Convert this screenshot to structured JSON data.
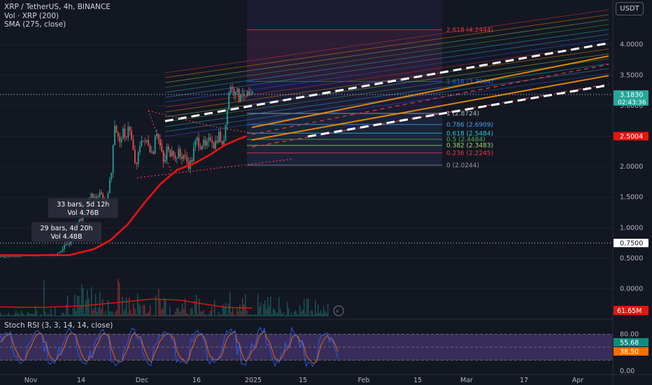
{
  "legend": {
    "symbol_line": "XRP / TetherUS, 4h, BINANCE",
    "vol_line": "Vol · XRP (200)",
    "sma_line": "SMA (275, close)"
  },
  "currency_button": "USDT",
  "stoch_label": "Stoch RSI (3, 3, 14, 14, close)",
  "colors": {
    "background": "#131722",
    "candle_up": "#26a69a",
    "candle_down": "#ef5350",
    "sma": "#e8140f",
    "fib_box": "#7c4dff",
    "stoch_band": "#7e57c2",
    "stoch_k": "#2962ff",
    "stoch_d": "#ff6d00"
  },
  "chart_data": {
    "type": "candlestick",
    "title": "",
    "y_axis": {
      "ticks": [
        "4.0000",
        "3.5000",
        "3.0000",
        "2.5000",
        "2.0000",
        "1.5000",
        "1.0000",
        "0.5000",
        "0.0000"
      ],
      "range": [
        -0.25,
        4.6
      ]
    },
    "x_axis": {
      "ticks": [
        "Nov",
        "14",
        "Dec",
        "16",
        "2025",
        "15",
        "Feb",
        "15",
        "Mar",
        "17",
        "Apr"
      ]
    },
    "price_path": [
      {
        "d": 0,
        "v": 0.52
      },
      {
        "d": 20,
        "v": 0.56
      },
      {
        "d": 25,
        "v": 0.75
      },
      {
        "d": 27,
        "v": 1.05
      },
      {
        "d": 29,
        "v": 1.15
      },
      {
        "d": 31,
        "v": 1.25
      },
      {
        "d": 32,
        "v": 1.45
      },
      {
        "d": 33,
        "v": 1.55
      },
      {
        "d": 34,
        "v": 1.48
      },
      {
        "d": 36,
        "v": 1.55
      },
      {
        "d": 38,
        "v": 1.42
      },
      {
        "d": 40,
        "v": 1.9
      },
      {
        "d": 41,
        "v": 2.75
      },
      {
        "d": 42,
        "v": 2.55
      },
      {
        "d": 43,
        "v": 2.35
      },
      {
        "d": 44,
        "v": 2.6
      },
      {
        "d": 45,
        "v": 2.4
      },
      {
        "d": 46,
        "v": 2.7
      },
      {
        "d": 47,
        "v": 2.5
      },
      {
        "d": 48,
        "v": 2.2
      },
      {
        "d": 49,
        "v": 1.95
      },
      {
        "d": 50,
        "v": 2.3
      },
      {
        "d": 51,
        "v": 2.5
      },
      {
        "d": 52,
        "v": 2.35
      },
      {
        "d": 53,
        "v": 2.45
      },
      {
        "d": 54,
        "v": 2.3
      },
      {
        "d": 55,
        "v": 2.2
      },
      {
        "d": 56,
        "v": 2.65
      },
      {
        "d": 57,
        "v": 2.45
      },
      {
        "d": 58,
        "v": 2.25
      },
      {
        "d": 59,
        "v": 2.0
      },
      {
        "d": 60,
        "v": 2.3
      },
      {
        "d": 61,
        "v": 2.2
      },
      {
        "d": 62,
        "v": 2.35
      },
      {
        "d": 63,
        "v": 2.1
      },
      {
        "d": 64,
        "v": 2.25
      },
      {
        "d": 65,
        "v": 2.15
      },
      {
        "d": 66,
        "v": 2.2
      },
      {
        "d": 67,
        "v": 2.1
      },
      {
        "d": 68,
        "v": 2.03
      },
      {
        "d": 69,
        "v": 2.1
      },
      {
        "d": 70,
        "v": 2.35
      },
      {
        "d": 71,
        "v": 2.45
      },
      {
        "d": 72,
        "v": 2.35
      },
      {
        "d": 73,
        "v": 2.4
      },
      {
        "d": 74,
        "v": 2.3
      },
      {
        "d": 75,
        "v": 2.4
      },
      {
        "d": 76,
        "v": 2.5
      },
      {
        "d": 77,
        "v": 2.35
      },
      {
        "d": 78,
        "v": 2.45
      },
      {
        "d": 79,
        "v": 2.55
      },
      {
        "d": 80,
        "v": 2.3
      },
      {
        "d": 81,
        "v": 2.6
      },
      {
        "d": 82,
        "v": 3.1
      },
      {
        "d": 83,
        "v": 3.35
      },
      {
        "d": 84,
        "v": 3.2
      },
      {
        "d": 85,
        "v": 3.3
      },
      {
        "d": 86,
        "v": 3.1
      },
      {
        "d": 87,
        "v": 3.3
      },
      {
        "d": 88,
        "v": 3.05
      },
      {
        "d": 89,
        "v": 3.2
      },
      {
        "d": 90,
        "v": 3.1
      },
      {
        "d": 91,
        "v": 3.183
      }
    ],
    "sma_path": [
      {
        "d": 0,
        "v": 0.55
      },
      {
        "d": 25,
        "v": 0.55
      },
      {
        "d": 34,
        "v": 0.65
      },
      {
        "d": 40,
        "v": 0.8
      },
      {
        "d": 46,
        "v": 1.05
      },
      {
        "d": 52,
        "v": 1.4
      },
      {
        "d": 58,
        "v": 1.72
      },
      {
        "d": 64,
        "v": 1.95
      },
      {
        "d": 70,
        "v": 2.05
      },
      {
        "d": 76,
        "v": 2.2
      },
      {
        "d": 81,
        "v": 2.35
      },
      {
        "d": 86,
        "v": 2.45
      },
      {
        "d": 89,
        "v": 2.5
      }
    ],
    "fib_levels": [
      {
        "label": "2.618 (4.2444)",
        "value": 4.2444,
        "color": "#f23645"
      },
      {
        "label": "1.618 (3.3964)",
        "value": 3.3964,
        "color": "#2962ff"
      },
      {
        "label": "1 (2.8724)",
        "value": 2.8724,
        "color": "#b2b5be"
      },
      {
        "label": "0.786 (2.6909)",
        "value": 2.6909,
        "color": "#42a5f5"
      },
      {
        "label": "0.618 (2.5484)",
        "value": 2.5484,
        "color": "#26c6da"
      },
      {
        "label": "0.5 (2.4484)",
        "value": 2.4484,
        "color": "#4caf50"
      },
      {
        "label": "0.382 (2.3483)",
        "value": 2.3483,
        "color": "#a5d66a"
      },
      {
        "label": "0.236 (2.2245)",
        "value": 2.2245,
        "color": "#f23645"
      },
      {
        "label": "0 (2.0244)",
        "value": 2.0244,
        "color": "#9598a1"
      }
    ],
    "price_labels": [
      {
        "text": "3.1830",
        "sub": "02:43:36",
        "value": 3.183,
        "bg": "#26a69a",
        "fg": "#ffffff"
      },
      {
        "text": "2.5004",
        "value": 2.5004,
        "bg": "#e8140f",
        "fg": "#ffffff"
      },
      {
        "text": "0.7500",
        "value": 0.75,
        "bg": "#ffffff",
        "fg": "#131722"
      }
    ],
    "dotted_levels": [
      3.183,
      0.75
    ],
    "annotations": [
      {
        "line1": "33 bars, 5d 12h",
        "line2": "Vol 4.76B",
        "d": 30,
        "v": 1.46
      },
      {
        "line1": "29 bars, 4d 20h",
        "line2": "Vol 4.48B",
        "d": 24,
        "v": 1.07
      }
    ],
    "volume": {
      "ma_label": "61.65M",
      "ma_color": "#e8140f",
      "ma_path": [
        {
          "d": 0,
          "v": 0.34
        },
        {
          "d": 15,
          "v": 0.32
        },
        {
          "d": 30,
          "v": 0.38
        },
        {
          "d": 45,
          "v": 0.52
        },
        {
          "d": 55,
          "v": 0.62
        },
        {
          "d": 65,
          "v": 0.58
        },
        {
          "d": 75,
          "v": 0.42
        },
        {
          "d": 82,
          "v": 0.32
        },
        {
          "d": 91,
          "v": 0.3
        }
      ]
    },
    "stoch_rsi": {
      "ticks": [
        "80.00",
        "0.00"
      ],
      "band": [
        20,
        80
      ],
      "k_label": "55.68",
      "d_label": "38.50",
      "k_value": 55.68,
      "d_value": 38.5
    }
  }
}
